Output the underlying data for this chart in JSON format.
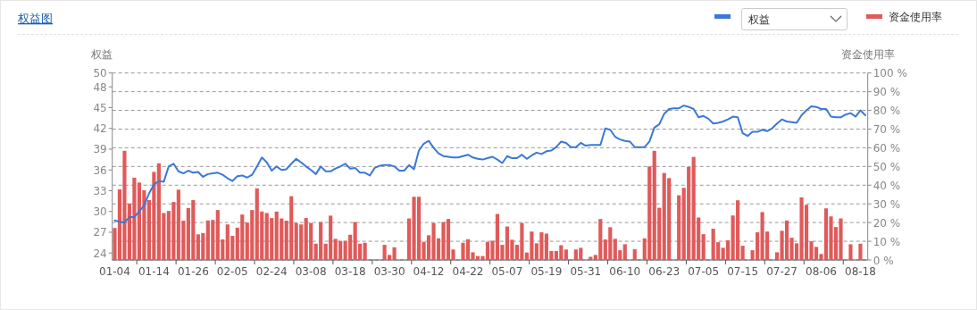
{
  "chart_data": {
    "type": "bar",
    "title": "权益图",
    "ylabel": "权益",
    "y2label": "资金使用率",
    "categories": [
      "01-04",
      null,
      null,
      null,
      null,
      null,
      null,
      null,
      "01-14",
      null,
      null,
      null,
      null,
      null,
      null,
      null,
      "01-26",
      null,
      null,
      null,
      null,
      null,
      null,
      null,
      "02-05",
      null,
      null,
      null,
      null,
      null,
      null,
      null,
      "02-24",
      null,
      null,
      null,
      null,
      null,
      null,
      null,
      "03-08",
      null,
      null,
      null,
      null,
      null,
      null,
      null,
      "03-18",
      null,
      null,
      null,
      null,
      null,
      null,
      null,
      "03-30",
      null,
      null,
      null,
      null,
      null,
      null,
      null,
      "04-12",
      null,
      null,
      null,
      null,
      null,
      null,
      null,
      "04-22",
      null,
      null,
      null,
      null,
      null,
      null,
      null,
      "05-07",
      null,
      null,
      null,
      null,
      null,
      null,
      null,
      "05-19",
      null,
      null,
      null,
      null,
      null,
      null,
      null,
      "05-31",
      null,
      null,
      null,
      null,
      null,
      null,
      null,
      "06-10",
      null,
      null,
      null,
      null,
      null,
      null,
      null,
      "06-23",
      null,
      null,
      null,
      null,
      null,
      null,
      null,
      "07-05",
      null,
      null,
      null,
      null,
      null,
      null,
      null,
      "07-15",
      null,
      null,
      null,
      null,
      null,
      null,
      null,
      "07-27",
      null,
      null,
      null,
      null,
      null,
      null,
      null,
      "08-06",
      null,
      null,
      null,
      null,
      null,
      null,
      null,
      "08-18",
      null
    ],
    "series": [
      {
        "name": "权益",
        "type": "line",
        "color": "#3a78d8",
        "values": [
          28.7,
          28.5,
          28.4,
          29.2,
          29.2,
          30.0,
          30.9,
          32.6,
          33.9,
          34.4,
          34.3,
          36.5,
          36.9,
          35.8,
          35.5,
          35.9,
          35.6,
          35.7,
          35.0,
          35.4,
          35.5,
          35.6,
          35.3,
          34.8,
          34.4,
          35.1,
          35.2,
          34.9,
          35.3,
          36.5,
          37.8,
          37.1,
          35.9,
          36.5,
          36.0,
          36.1,
          36.9,
          37.6,
          37.1,
          36.5,
          36.0,
          35.4,
          36.5,
          35.8,
          35.8,
          36.2,
          36.5,
          36.9,
          36.2,
          36.3,
          35.6,
          35.6,
          35.2,
          36.3,
          36.6,
          36.7,
          36.7,
          36.5,
          35.9,
          35.9,
          36.7,
          36.1,
          38.8,
          39.8,
          40.2,
          39.2,
          38.4,
          38.0,
          37.9,
          37.8,
          37.8,
          38.0,
          38.2,
          37.8,
          37.6,
          37.5,
          37.7,
          37.9,
          37.5,
          37.0,
          38.0,
          37.7,
          37.7,
          38.2,
          37.6,
          38.1,
          38.5,
          38.3,
          38.7,
          38.8,
          39.3,
          40.1,
          39.9,
          39.3,
          39.3,
          39.9,
          39.5,
          39.6,
          39.6,
          39.6,
          42.0,
          41.8,
          40.8,
          40.4,
          40.2,
          40.1,
          39.3,
          39.3,
          39.3,
          40.1,
          42.1,
          42.6,
          44.1,
          44.8,
          44.9,
          44.9,
          45.3,
          45.1,
          44.8,
          43.6,
          43.8,
          43.4,
          42.7,
          42.8,
          43.0,
          43.3,
          43.7,
          43.6,
          41.3,
          40.9,
          41.5,
          41.5,
          41.8,
          41.6,
          42.0,
          42.7,
          43.3,
          43.0,
          42.9,
          42.8,
          43.9,
          44.6,
          45.2,
          45.1,
          44.8,
          44.8,
          43.7,
          43.6,
          43.6,
          44.0,
          44.2,
          43.7,
          44.6,
          43.9
        ]
      },
      {
        "name": "资金使用率",
        "axis": "y2",
        "color": "#e05a5a",
        "values": [
          17.1,
          37.8,
          58.4,
          30.2,
          44,
          41.4,
          37.3,
          32,
          47.1,
          51.7,
          25.1,
          26.2,
          31,
          37.6,
          21,
          27.8,
          32,
          13.7,
          14.4,
          21.1,
          21.4,
          26.7,
          11,
          19,
          12.9,
          17.3,
          24.3,
          20,
          26.7,
          38.3,
          25.9,
          25.1,
          22.4,
          25.9,
          22.2,
          21,
          34.1,
          19.8,
          19,
          22.4,
          19.8,
          8.7,
          20.3,
          8.7,
          23.7,
          11.3,
          10.2,
          10.2,
          13.5,
          20.3,
          8.7,
          9.2,
          null,
          null,
          null,
          8.1,
          2.7,
          6.8,
          null,
          null,
          22.2,
          33.8,
          33.8,
          9.7,
          13.2,
          19.8,
          11.6,
          20.3,
          21.9,
          5.6,
          null,
          9.2,
          11.1,
          4.1,
          2.1,
          2.1,
          9.7,
          10.3,
          24.6,
          8.1,
          17.9,
          10.8,
          8.1,
          19.8,
          4.0,
          15.2,
          8.9,
          14.8,
          14.1,
          4.8,
          4.8,
          7.9,
          5.6,
          null,
          5.6,
          6.5,
          null,
          1.7,
          2.7,
          21.9,
          11,
          17.5,
          11.3,
          5.2,
          8.4,
          null,
          5.7,
          null,
          11.6,
          50,
          58.4,
          27.9,
          46.5,
          43.8,
          null,
          34.6,
          38.6,
          49.7,
          55.1,
          22.7,
          13.8,
          null,
          16.7,
          9.5,
          6.5,
          10.5,
          23.8,
          31.9,
          7.6,
          null,
          5.2,
          14.8,
          25.6,
          15.2,
          null,
          4.1,
          15.6,
          21.1,
          11.9,
          8.9,
          33.5,
          29.5,
          10,
          7,
          3.2,
          27.6,
          23.3,
          17.6,
          22.2,
          null,
          8.4,
          null,
          8.7,
          null
        ]
      }
    ],
    "ylim": [
      23,
      50
    ],
    "yticks": [
      24,
      27,
      30,
      33,
      36,
      39,
      42,
      45,
      48,
      50
    ],
    "y2lim": [
      0,
      100
    ],
    "y2ticks": [
      {
        "value": 0,
        "label": "0 %"
      },
      {
        "value": 10,
        "label": "10 %"
      },
      {
        "value": 20,
        "label": "20 %"
      },
      {
        "value": 30,
        "label": "30 %"
      },
      {
        "value": 40,
        "label": "40 %"
      },
      {
        "value": 50,
        "label": "50 %"
      },
      {
        "value": 60,
        "label": "60 %"
      },
      {
        "value": 70,
        "label": "70 %"
      },
      {
        "value": 80,
        "label": "80 %"
      },
      {
        "value": 90,
        "label": "90 %"
      },
      {
        "value": 100,
        "label": "100 %"
      }
    ],
    "grid": "y",
    "legend": "top right"
  }
}
